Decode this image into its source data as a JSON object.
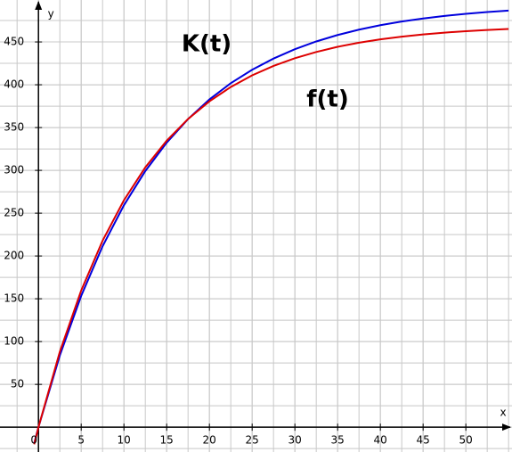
{
  "chart_data": {
    "type": "line",
    "x_label": "x",
    "y_label": "y",
    "x": [
      -0.5,
      0,
      2.5,
      5,
      7.5,
      10,
      12.5,
      15,
      17.5,
      20,
      22.5,
      25,
      27.5,
      30,
      32.5,
      35,
      37.5,
      40,
      42.5,
      45,
      47.5,
      50,
      52.5,
      55
    ],
    "series": [
      {
        "name": "K(t)",
        "color": "#0000dd",
        "values": [
          -18.7,
          0,
          83.8,
          153.4,
          211.3,
          259.3,
          299.2,
          332.3,
          359.9,
          382.8,
          401.8,
          417.5,
          430.6,
          441.5,
          450.6,
          458.1,
          464.4,
          469.6,
          473.9,
          477.4,
          480.4,
          482.9,
          484.9,
          486.6
        ]
      },
      {
        "name": "f(t)",
        "color": "#dd0000",
        "values": [
          -20.0,
          0,
          88.1,
          159.7,
          217.8,
          265.1,
          303.5,
          334.7,
          360.0,
          380.6,
          397.4,
          411.0,
          422.0,
          431.0,
          438.3,
          444.3,
          449.1,
          453.0,
          456.2,
          458.8,
          460.9,
          462.6,
          464.0,
          465.1
        ]
      }
    ],
    "xlim": [
      -4.5,
      55.4
    ],
    "ylim": [
      -29,
      499
    ],
    "xticks": [
      0,
      5,
      10,
      15,
      20,
      25,
      30,
      35,
      40,
      45,
      50
    ],
    "yticks": [
      50,
      100,
      150,
      200,
      250,
      300,
      350,
      400,
      450
    ],
    "grid": true
  }
}
